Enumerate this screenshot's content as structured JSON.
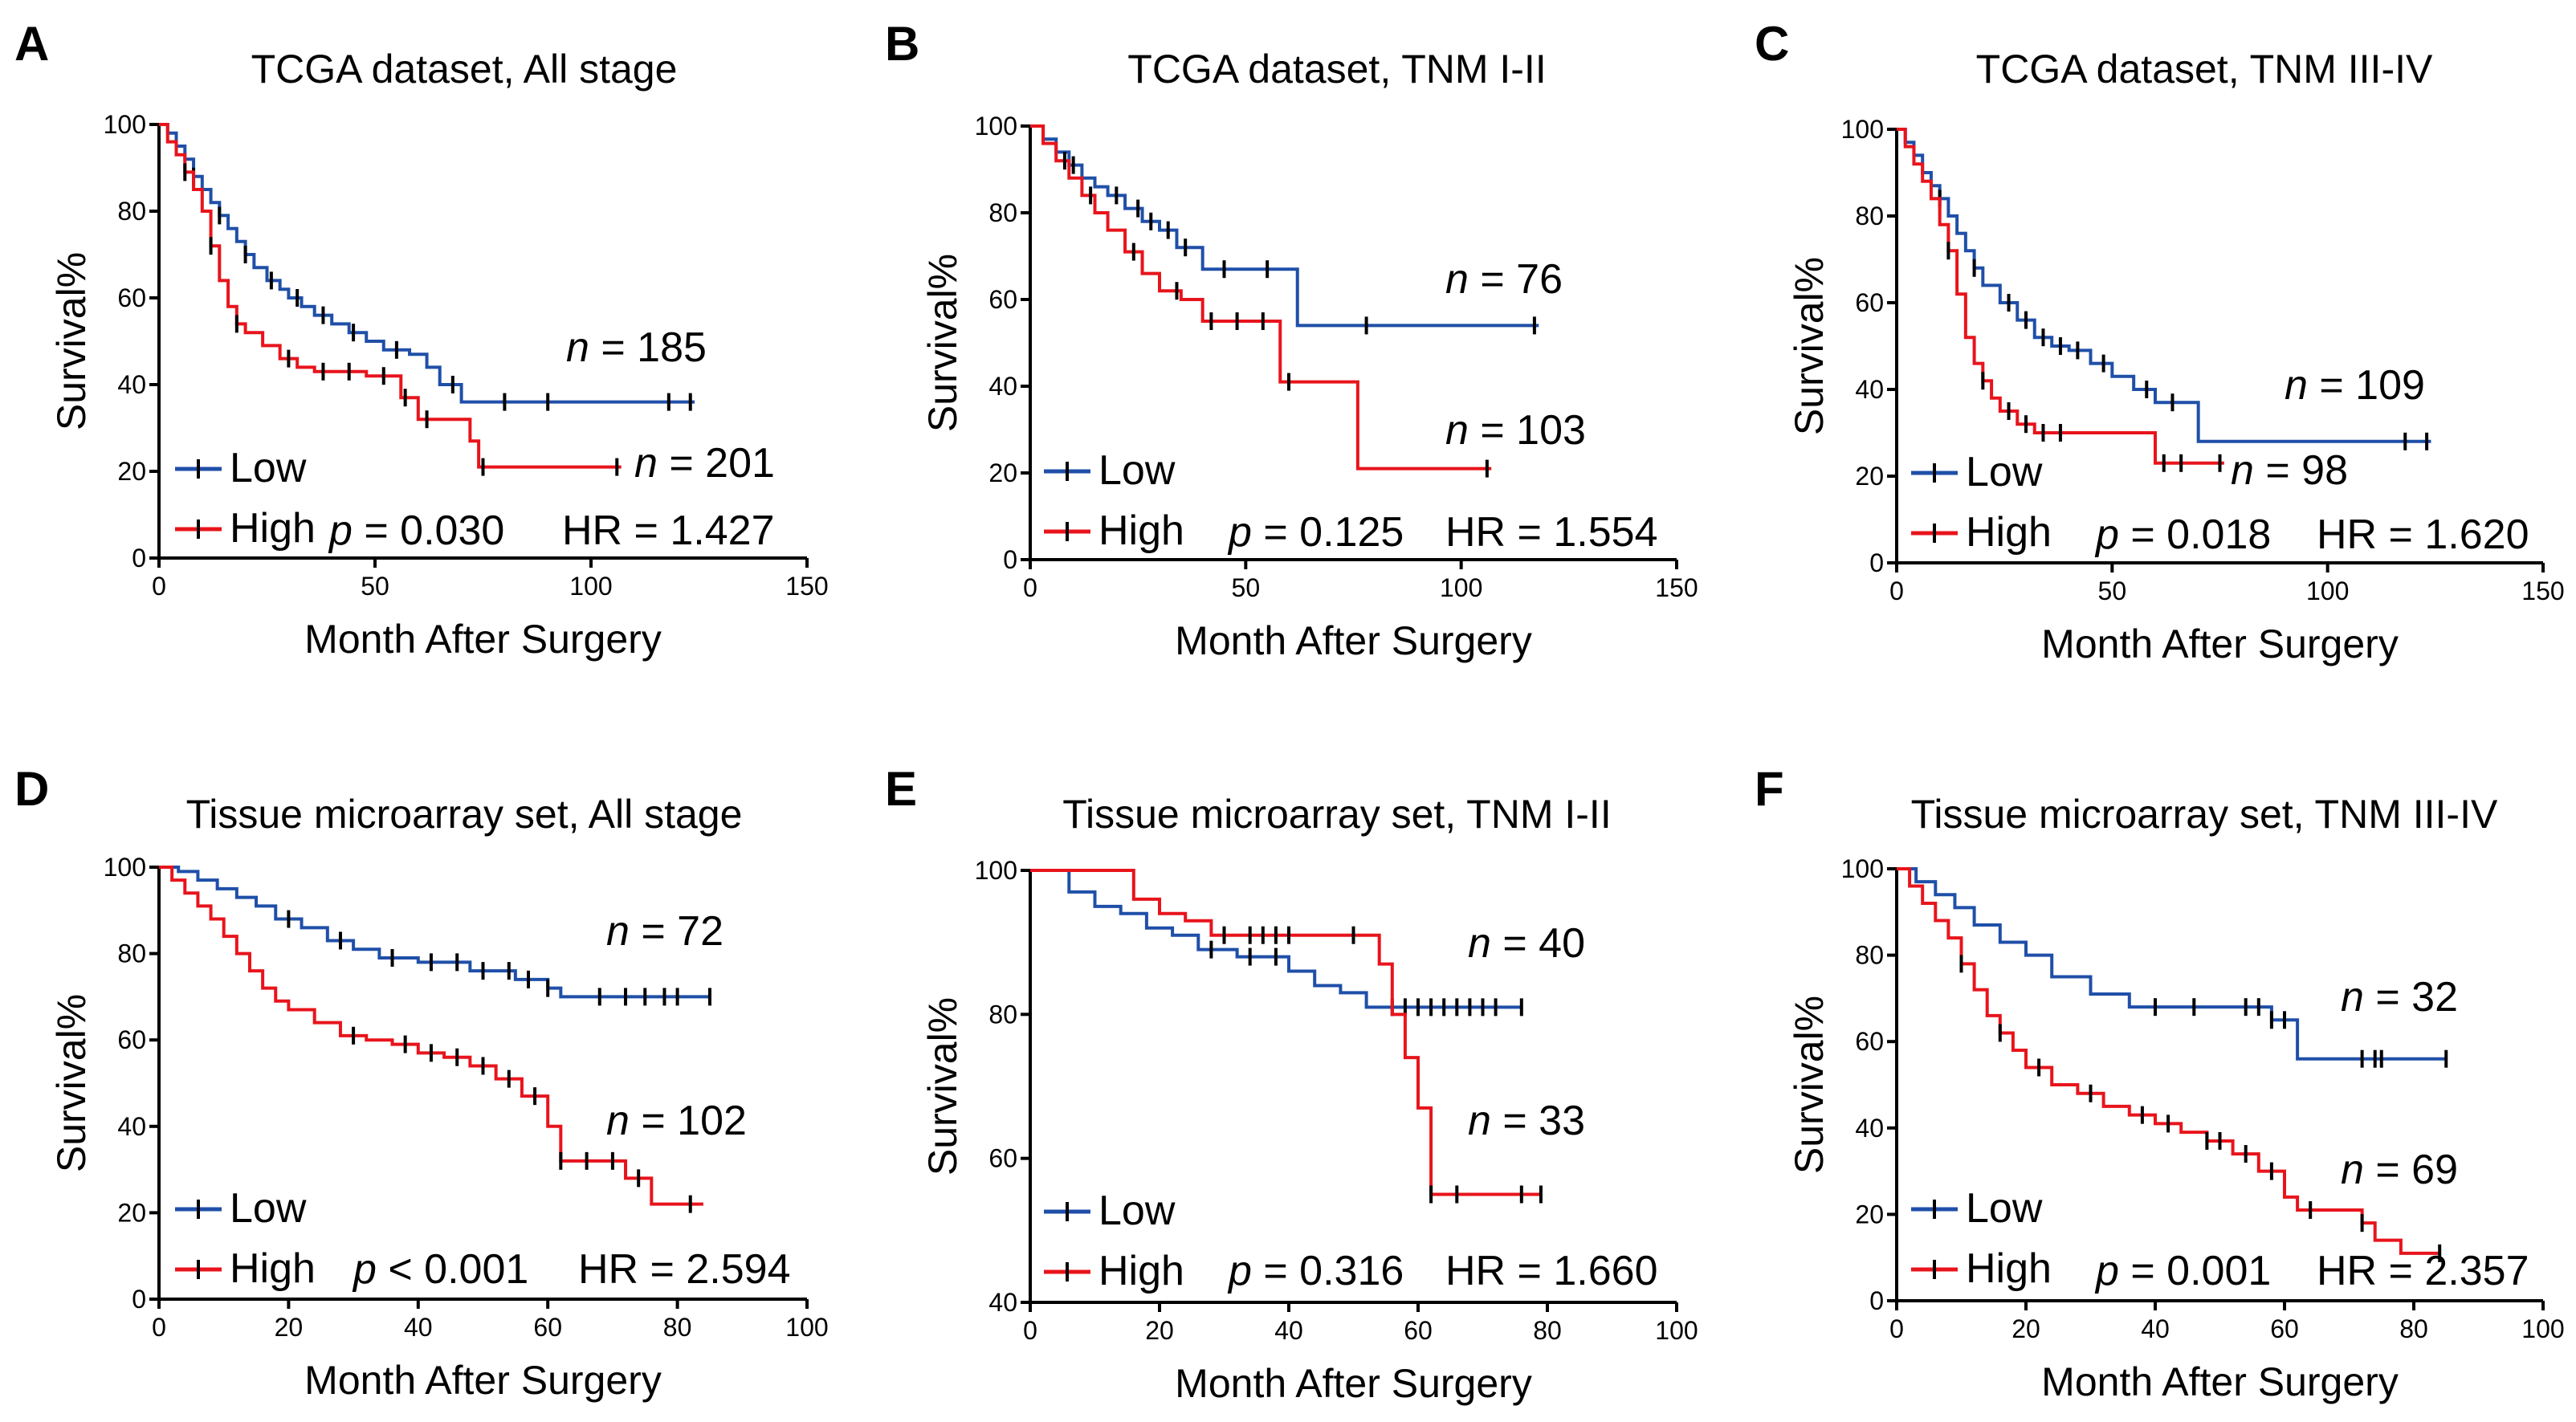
{
  "colors": {
    "low": "#1f4fa8",
    "high": "#e8141c",
    "axis": "#000000",
    "censor": "#000000"
  },
  "chart_data": [
    {
      "type": "line",
      "panel": "A",
      "title": "TCGA dataset, All stage",
      "xlabel": "Month After Surgery",
      "ylabel": "Survival%",
      "xlim": [
        0,
        150
      ],
      "ylim": [
        0,
        100
      ],
      "xticks": [
        "0",
        "50",
        "100",
        "150"
      ],
      "yticks": [
        "0",
        "20",
        "40",
        "60",
        "80",
        "100"
      ],
      "legend": [
        "Low",
        "High"
      ],
      "legend_loc": "lower-left",
      "p_label": "p",
      "p_text": " = 0.030",
      "hr_text": "HR = 1.427",
      "series": [
        {
          "name": "Low",
          "n_label": "n",
          "n_value": " = 185",
          "x": [
            0,
            2,
            4,
            6,
            8,
            10,
            12,
            14,
            16,
            18,
            20,
            22,
            25,
            28,
            30,
            33,
            36,
            40,
            44,
            48,
            52,
            58,
            62,
            65,
            70,
            124
          ],
          "y": [
            100,
            98,
            95,
            92,
            88,
            85,
            82,
            79,
            76,
            73,
            70,
            67,
            64,
            62,
            60,
            58,
            56,
            54,
            52,
            50,
            48,
            47,
            44,
            40,
            36,
            36
          ],
          "censor_x": [
            8,
            14,
            20,
            26,
            32,
            38,
            45,
            55,
            68,
            80,
            90,
            118,
            123
          ]
        },
        {
          "name": "High",
          "n_label": "n",
          "n_value": " = 201",
          "x": [
            0,
            2,
            4,
            6,
            8,
            10,
            12,
            14,
            16,
            18,
            20,
            24,
            28,
            32,
            36,
            42,
            48,
            56,
            60,
            72,
            74,
            107
          ],
          "y": [
            100,
            96,
            93,
            89,
            85,
            80,
            72,
            64,
            58,
            54,
            52,
            49,
            46,
            44,
            43,
            43,
            42,
            37,
            32,
            27,
            21,
            21
          ],
          "censor_x": [
            6,
            12,
            18,
            30,
            38,
            44,
            52,
            57,
            62,
            75,
            106
          ]
        }
      ]
    },
    {
      "type": "line",
      "panel": "B",
      "title": "TCGA dataset, TNM I-II",
      "xlabel": "Month After Surgery",
      "ylabel": "Survival%",
      "xlim": [
        0,
        150
      ],
      "ylim": [
        0,
        100
      ],
      "xticks": [
        "0",
        "50",
        "100",
        "150"
      ],
      "yticks": [
        "0",
        "20",
        "40",
        "60",
        "80",
        "100"
      ],
      "legend": [
        "Low",
        "High"
      ],
      "legend_loc": "lower-left",
      "p_label": "p",
      "p_text": " = 0.125",
      "hr_text": "HR = 1.554",
      "series": [
        {
          "name": "Low",
          "n_label": "n",
          "n_value": " = 76",
          "x": [
            0,
            3,
            6,
            9,
            12,
            15,
            18,
            22,
            26,
            30,
            34,
            40,
            60,
            62,
            118
          ],
          "y": [
            100,
            97,
            94,
            91,
            88,
            86,
            84,
            81,
            78,
            76,
            72,
            67,
            67,
            54,
            54
          ],
          "censor_x": [
            10,
            20,
            25,
            28,
            32,
            36,
            45,
            55,
            78,
            117
          ]
        },
        {
          "name": "High",
          "n_label": "n",
          "n_value": " = 103",
          "x": [
            0,
            3,
            6,
            9,
            12,
            15,
            18,
            22,
            26,
            30,
            35,
            40,
            56,
            58,
            74,
            76,
            107
          ],
          "y": [
            100,
            96,
            92,
            88,
            84,
            80,
            76,
            71,
            66,
            62,
            60,
            55,
            55,
            41,
            41,
            21,
            21
          ],
          "censor_x": [
            8,
            14,
            24,
            34,
            42,
            48,
            54,
            60,
            106
          ]
        }
      ]
    },
    {
      "type": "line",
      "panel": "C",
      "title": "TCGA dataset, TNM III-IV",
      "xlabel": "Month After Surgery",
      "ylabel": "Survival%",
      "xlim": [
        0,
        150
      ],
      "ylim": [
        0,
        100
      ],
      "xticks": [
        "0",
        "50",
        "100",
        "150"
      ],
      "yticks": [
        "0",
        "20",
        "40",
        "60",
        "80",
        "100"
      ],
      "legend": [
        "Low",
        "High"
      ],
      "legend_loc": "lower-left",
      "p_label": "p",
      "p_text": " = 0.018",
      "hr_text": "HR = 1.620",
      "series": [
        {
          "name": "Low",
          "n_label": "n",
          "n_value": " = 109",
          "x": [
            0,
            2,
            4,
            6,
            8,
            10,
            12,
            14,
            16,
            18,
            20,
            24,
            28,
            32,
            36,
            40,
            45,
            50,
            55,
            60,
            66,
            70,
            124
          ],
          "y": [
            100,
            97,
            94,
            90,
            87,
            84,
            80,
            76,
            72,
            68,
            64,
            60,
            56,
            52,
            50,
            49,
            46,
            43,
            40,
            37,
            37,
            28,
            28
          ],
          "censor_x": [
            10,
            18,
            26,
            30,
            34,
            38,
            42,
            48,
            58,
            64,
            118,
            123
          ]
        },
        {
          "name": "High",
          "n_label": "n",
          "n_value": " = 98",
          "x": [
            0,
            2,
            4,
            6,
            8,
            10,
            12,
            14,
            16,
            18,
            20,
            22,
            24,
            28,
            32,
            40,
            50,
            58,
            60,
            76
          ],
          "y": [
            100,
            96,
            92,
            88,
            84,
            78,
            72,
            62,
            52,
            46,
            42,
            38,
            35,
            32,
            30,
            30,
            30,
            30,
            23,
            23
          ],
          "censor_x": [
            12,
            20,
            26,
            30,
            34,
            38,
            62,
            66,
            75
          ]
        }
      ]
    },
    {
      "type": "line",
      "panel": "D",
      "title": "Tissue microarray set, All stage",
      "xlabel": "Month After Surgery",
      "ylabel": "Survival%",
      "xlim": [
        0,
        100
      ],
      "ylim": [
        0,
        100
      ],
      "xticks": [
        "0",
        "20",
        "40",
        "60",
        "80",
        "100"
      ],
      "yticks": [
        "0",
        "20",
        "40",
        "60",
        "80",
        "100"
      ],
      "legend": [
        "Low",
        "High"
      ],
      "legend_loc": "lower-left",
      "p_label": "p",
      "p_text": " < 0.001",
      "hr_text": "HR = 2.594",
      "series": [
        {
          "name": "Low",
          "n_label": "n",
          "n_value": " = 72",
          "x": [
            0,
            3,
            6,
            9,
            12,
            15,
            18,
            22,
            26,
            30,
            34,
            40,
            48,
            55,
            60,
            62,
            85
          ],
          "y": [
            100,
            99,
            97,
            95,
            93,
            91,
            88,
            86,
            83,
            81,
            79,
            78,
            76,
            74,
            72,
            70,
            70
          ],
          "censor_x": [
            20,
            28,
            36,
            42,
            46,
            50,
            54,
            57,
            60,
            68,
            72,
            75,
            78,
            80,
            85
          ]
        },
        {
          "name": "High",
          "n_label": "n",
          "n_value": " = 102",
          "x": [
            0,
            2,
            4,
            6,
            8,
            10,
            12,
            14,
            16,
            18,
            20,
            24,
            28,
            32,
            36,
            40,
            44,
            48,
            52,
            56,
            60,
            62,
            64,
            72,
            76,
            84
          ],
          "y": [
            100,
            97,
            94,
            91,
            88,
            84,
            80,
            76,
            72,
            69,
            67,
            64,
            61,
            60,
            59,
            57,
            56,
            54,
            51,
            47,
            40,
            32,
            32,
            28,
            22,
            22
          ],
          "censor_x": [
            30,
            38,
            42,
            46,
            50,
            54,
            58,
            62,
            66,
            70,
            74,
            82
          ]
        }
      ]
    },
    {
      "type": "line",
      "panel": "E",
      "title": "Tissue microarray set, TNM I-II",
      "xlabel": "Month After Surgery",
      "ylabel": "Survival%",
      "xlim": [
        0,
        100
      ],
      "ylim": [
        40,
        100
      ],
      "xticks": [
        "0",
        "20",
        "40",
        "60",
        "80",
        "100"
      ],
      "yticks": [
        "40",
        "60",
        "80",
        "100"
      ],
      "legend": [
        "Low",
        "High"
      ],
      "legend_loc": "lower-left",
      "p_label": "p",
      "p_text": " = 0.316",
      "hr_text": "HR = 1.660",
      "series": [
        {
          "name": "Low",
          "n_label": "n",
          "n_value": " = 40",
          "x": [
            0,
            6,
            10,
            14,
            18,
            22,
            26,
            32,
            40,
            44,
            48,
            52,
            76
          ],
          "y": [
            100,
            97,
            95,
            94,
            92,
            91,
            89,
            88,
            86,
            84,
            83,
            81,
            81
          ],
          "censor_x": [
            28,
            34,
            38,
            56,
            58,
            60,
            62,
            64,
            66,
            68,
            70,
            72,
            76
          ]
        },
        {
          "name": "High",
          "n_label": "n",
          "n_value": " = 33",
          "x": [
            0,
            13,
            16,
            20,
            24,
            28,
            52,
            54,
            56,
            58,
            60,
            62,
            64,
            79
          ],
          "y": [
            100,
            100,
            96,
            94,
            93,
            91,
            91,
            87,
            80,
            74,
            67,
            55,
            55,
            55
          ],
          "censor_x": [
            30,
            34,
            36,
            38,
            40,
            50,
            62,
            66,
            76,
            79
          ]
        }
      ]
    },
    {
      "type": "line",
      "panel": "F",
      "title": "Tissue microarray set, TNM III-IV",
      "xlabel": "Month After Surgery",
      "ylabel": "Survival%",
      "xlim": [
        0,
        100
      ],
      "ylim": [
        0,
        100
      ],
      "xticks": [
        "0",
        "20",
        "40",
        "60",
        "80",
        "100"
      ],
      "yticks": [
        "0",
        "20",
        "40",
        "60",
        "80",
        "100"
      ],
      "legend": [
        "Low",
        "High"
      ],
      "legend_loc": "lower-left",
      "p_label": "p",
      "p_text": " = 0.001",
      "hr_text": "HR = 2.357",
      "series": [
        {
          "name": "Low",
          "n_label": "n",
          "n_value": " = 32",
          "x": [
            0,
            3,
            6,
            9,
            12,
            16,
            20,
            24,
            30,
            36,
            58,
            62,
            85
          ],
          "y": [
            100,
            97,
            94,
            91,
            87,
            83,
            80,
            75,
            71,
            68,
            65,
            56,
            56
          ],
          "censor_x": [
            40,
            46,
            54,
            56,
            58,
            60,
            72,
            74,
            75,
            85
          ]
        },
        {
          "name": "High",
          "n_label": "n",
          "n_value": " = 69",
          "x": [
            0,
            2,
            4,
            6,
            8,
            10,
            12,
            14,
            16,
            18,
            20,
            24,
            28,
            32,
            36,
            40,
            44,
            48,
            52,
            56,
            60,
            62,
            72,
            74,
            78,
            84
          ],
          "y": [
            100,
            96,
            92,
            88,
            84,
            78,
            72,
            66,
            62,
            58,
            54,
            50,
            48,
            45,
            43,
            41,
            39,
            37,
            34,
            30,
            24,
            21,
            18,
            14,
            11,
            11
          ],
          "censor_x": [
            10,
            16,
            22,
            30,
            38,
            42,
            48,
            50,
            54,
            58,
            64,
            72,
            84
          ]
        }
      ]
    }
  ]
}
